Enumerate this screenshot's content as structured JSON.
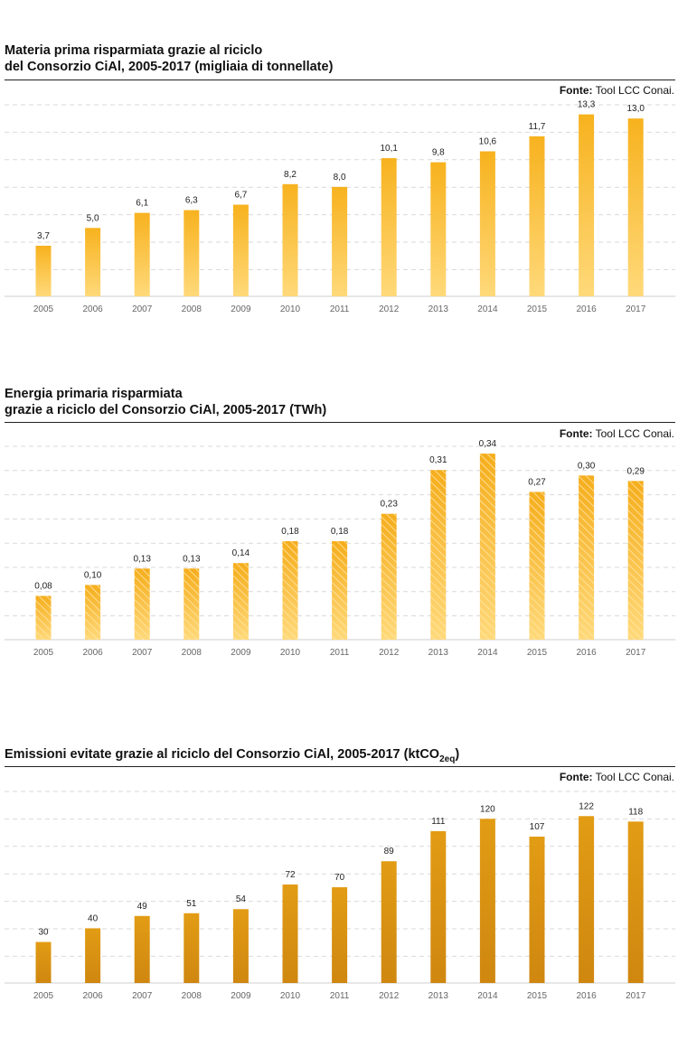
{
  "chart_data": [
    {
      "type": "bar",
      "title_line1": "Materia prima risparmiata grazie al riciclo",
      "title_line2": "del Consorzio CiAl, 2005-2017 (migliaia di tonnellate)",
      "source_label": "Fonte:",
      "source_text": " Tool LCC Conai.",
      "categories": [
        "2005",
        "2006",
        "2007",
        "2008",
        "2009",
        "2010",
        "2011",
        "2012",
        "2013",
        "2014",
        "2015",
        "2016",
        "2017"
      ],
      "values": [
        3.7,
        5.0,
        6.1,
        6.3,
        6.7,
        8.2,
        8.0,
        10.1,
        9.8,
        10.6,
        11.7,
        13.3,
        13.0
      ],
      "labels": [
        "3,7",
        "5,0",
        "6,1",
        "6,3",
        "6,7",
        "8,2",
        "8,0",
        "10,1",
        "9,8",
        "10,6",
        "11,7",
        "13,3",
        "13,0"
      ],
      "ylim": [
        0,
        14
      ],
      "style": "gradient",
      "colors": {
        "top": "#f7b21e",
        "bottom": "#ffd97a"
      },
      "grid": true
    },
    {
      "type": "bar",
      "title_line1": "Energia primaria risparmiata",
      "title_line2": "grazie a riciclo del Consorzio CiAl, 2005-2017 (TWh)",
      "source_label": "Fonte:",
      "source_text": " Tool LCC Conai.",
      "categories": [
        "2005",
        "2006",
        "2007",
        "2008",
        "2009",
        "2010",
        "2011",
        "2012",
        "2013",
        "2014",
        "2015",
        "2016",
        "2017"
      ],
      "values": [
        0.08,
        0.1,
        0.13,
        0.13,
        0.14,
        0.18,
        0.18,
        0.23,
        0.31,
        0.34,
        0.27,
        0.3,
        0.29
      ],
      "labels": [
        "0,08",
        "0,10",
        "0,13",
        "0,13",
        "0,14",
        "0,18",
        "0,18",
        "0,23",
        "0,31",
        "0,34",
        "0,27",
        "0,30",
        "0,29"
      ],
      "ylim": [
        0,
        0.35
      ],
      "style": "hatched",
      "colors": {
        "top": "#f5ad1c",
        "bottom": "#ffd97a",
        "hatch": "#ffe6a6"
      },
      "grid": true
    },
    {
      "type": "bar",
      "title_line1": "Emissioni evitate grazie al riciclo del Consorzio CiAl, 2005-2017 (ktCO",
      "title_sub": "2eq",
      "title_end": ")",
      "source_label": "Fonte:",
      "source_text": " Tool LCC Conai.",
      "categories": [
        "2005",
        "2006",
        "2007",
        "2008",
        "2009",
        "2010",
        "2011",
        "2012",
        "2013",
        "2014",
        "2015",
        "2016",
        "2017"
      ],
      "values": [
        30,
        40,
        49,
        51,
        54,
        72,
        70,
        89,
        111,
        120,
        107,
        122,
        118
      ],
      "labels": [
        "30",
        "40",
        "49",
        "51",
        "54",
        "72",
        "70",
        "89",
        "111",
        "120",
        "107",
        "122",
        "118"
      ],
      "ylim": [
        0,
        140
      ],
      "style": "gradient",
      "colors": {
        "top": "#e29c14",
        "bottom": "#cf8710"
      },
      "grid": true
    }
  ]
}
